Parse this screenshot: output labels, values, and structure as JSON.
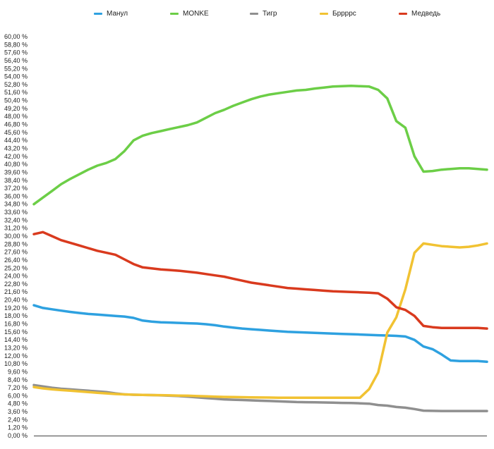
{
  "chart_data": {
    "type": "line",
    "title": "",
    "xlabel": "",
    "ylabel": "",
    "ylim": [
      0,
      60
    ],
    "y_ticks": [
      "0,00 %",
      "1,20 %",
      "2,40 %",
      "3,60 %",
      "4,80 %",
      "6,00 %",
      "7,20 %",
      "8,40 %",
      "9,60 %",
      "10,80 %",
      "12,00 %",
      "13,20 %",
      "14,40 %",
      "15,60 %",
      "16,80 %",
      "18,00 %",
      "19,20 %",
      "20,40 %",
      "21,60 %",
      "22,80 %",
      "24,00 %",
      "25,20 %",
      "26,40 %",
      "27,60 %",
      "28,80 %",
      "30,00 %",
      "31,20 %",
      "32,40 %",
      "33,60 %",
      "34,80 %",
      "36,00 %",
      "37,20 %",
      "38,40 %",
      "39,60 %",
      "40,80 %",
      "42,00 %",
      "43,20 %",
      "44,40 %",
      "45,60 %",
      "46,80 %",
      "48,00 %",
      "49,20 %",
      "50,40 %",
      "51,60 %",
      "52,80 %",
      "54,00 %",
      "55,20 %",
      "56,40 %",
      "57,60 %",
      "58,80 %",
      "60,00 %"
    ],
    "grid": false,
    "legend_position": "top",
    "x": [
      0,
      1,
      2,
      3,
      4,
      5,
      6,
      7,
      8,
      9,
      10,
      11,
      12,
      13,
      14,
      15,
      16,
      17,
      18,
      19,
      20,
      21,
      22,
      23,
      24,
      25,
      26,
      27,
      28,
      29,
      30,
      31,
      32,
      33,
      34,
      35,
      36,
      37,
      38,
      39,
      40,
      41,
      42,
      43,
      44,
      45,
      46,
      47,
      48,
      49,
      50
    ],
    "series": [
      {
        "name": "Манул",
        "color": "#2ea1e0",
        "values": [
          19.6,
          19.2,
          19.0,
          18.8,
          18.6,
          18.45,
          18.3,
          18.2,
          18.1,
          18.0,
          17.9,
          17.7,
          17.3,
          17.15,
          17.05,
          17.0,
          16.95,
          16.9,
          16.85,
          16.75,
          16.6,
          16.4,
          16.25,
          16.1,
          16.0,
          15.9,
          15.8,
          15.7,
          15.6,
          15.55,
          15.5,
          15.45,
          15.4,
          15.35,
          15.3,
          15.25,
          15.2,
          15.15,
          15.1,
          15.05,
          15.0,
          14.9,
          14.4,
          13.4,
          13.0,
          12.2,
          11.3,
          11.2,
          11.2,
          11.2,
          11.1
        ]
      },
      {
        "name": "MONKE",
        "color": "#6cce47",
        "values": [
          34.8,
          35.8,
          36.8,
          37.8,
          38.6,
          39.3,
          40.0,
          40.6,
          41.0,
          41.6,
          42.8,
          44.4,
          45.1,
          45.5,
          45.8,
          46.1,
          46.4,
          46.7,
          47.1,
          47.8,
          48.5,
          49.0,
          49.6,
          50.1,
          50.6,
          51.0,
          51.3,
          51.5,
          51.7,
          51.9,
          52.0,
          52.2,
          52.35,
          52.5,
          52.55,
          52.6,
          52.55,
          52.5,
          52.0,
          50.7,
          47.3,
          46.3,
          42.0,
          39.7,
          39.8,
          40.0,
          40.1,
          40.2,
          40.2,
          40.1,
          40.0
        ]
      },
      {
        "name": "Тигр",
        "color": "#8f8f8f",
        "values": [
          7.6,
          7.4,
          7.2,
          7.05,
          6.95,
          6.85,
          6.75,
          6.65,
          6.55,
          6.35,
          6.2,
          6.15,
          6.12,
          6.1,
          6.05,
          6.0,
          5.95,
          5.85,
          5.75,
          5.65,
          5.55,
          5.45,
          5.4,
          5.35,
          5.3,
          5.25,
          5.2,
          5.15,
          5.1,
          5.05,
          5.02,
          5.0,
          4.98,
          4.95,
          4.92,
          4.9,
          4.85,
          4.8,
          4.6,
          4.5,
          4.3,
          4.2,
          4.0,
          3.75,
          3.72,
          3.7,
          3.7,
          3.7,
          3.7,
          3.7,
          3.7
        ]
      },
      {
        "name": "Бррррс",
        "color": "#f1c232",
        "values": [
          7.3,
          7.1,
          6.95,
          6.85,
          6.75,
          6.65,
          6.55,
          6.45,
          6.35,
          6.25,
          6.2,
          6.15,
          6.12,
          6.1,
          6.08,
          6.05,
          6.02,
          6.0,
          5.95,
          5.9,
          5.85,
          5.82,
          5.8,
          5.78,
          5.76,
          5.74,
          5.72,
          5.7,
          5.7,
          5.7,
          5.7,
          5.7,
          5.7,
          5.7,
          5.7,
          5.7,
          5.7,
          7.0,
          9.5,
          15.5,
          17.8,
          22.0,
          27.5,
          28.9,
          28.7,
          28.5,
          28.4,
          28.3,
          28.4,
          28.6,
          28.9
        ]
      },
      {
        "name": "Медведь",
        "color": "#d93a1e",
        "values": [
          30.3,
          30.6,
          30.0,
          29.4,
          29.0,
          28.6,
          28.2,
          27.8,
          27.5,
          27.2,
          26.5,
          25.8,
          25.3,
          25.15,
          25.0,
          24.9,
          24.8,
          24.65,
          24.5,
          24.3,
          24.1,
          23.9,
          23.6,
          23.3,
          23.0,
          22.8,
          22.6,
          22.4,
          22.2,
          22.1,
          22.0,
          21.9,
          21.8,
          21.7,
          21.65,
          21.6,
          21.55,
          21.5,
          21.4,
          20.6,
          19.3,
          18.9,
          18.0,
          16.5,
          16.3,
          16.2,
          16.2,
          16.2,
          16.2,
          16.2,
          16.1
        ]
      }
    ]
  }
}
